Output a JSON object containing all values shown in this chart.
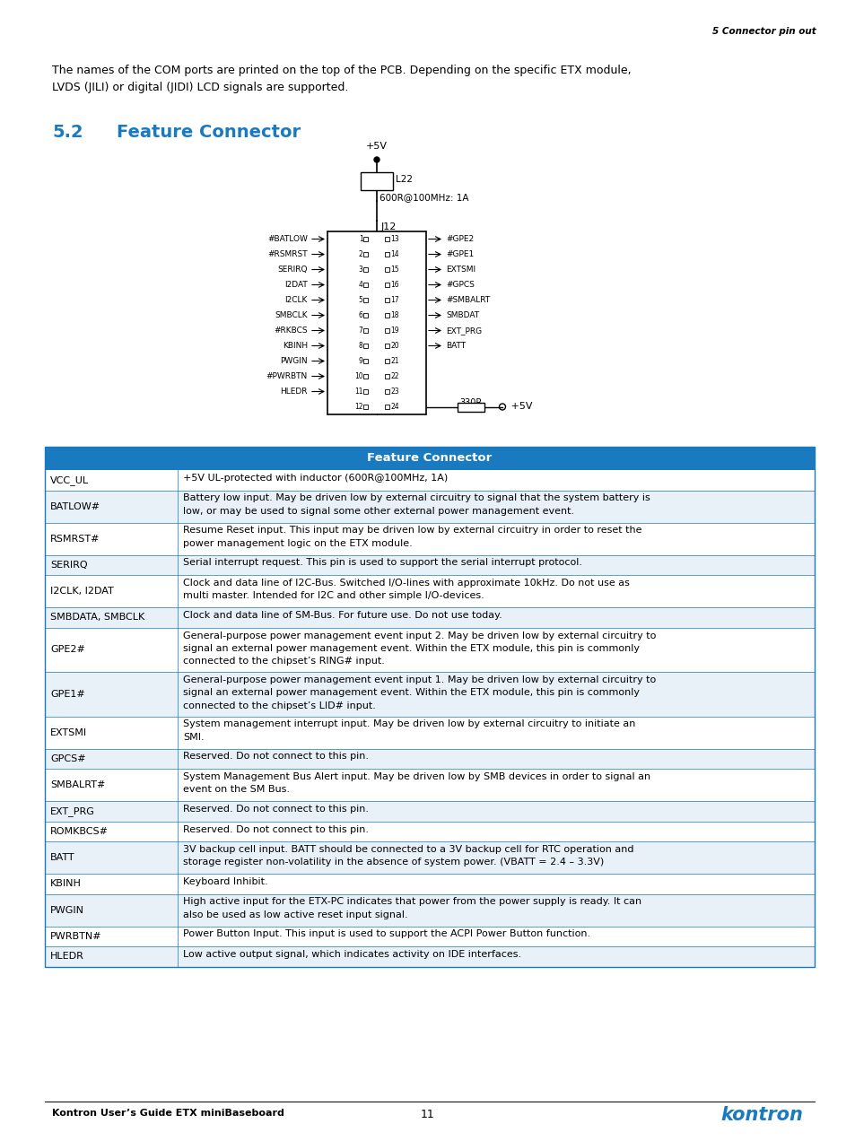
{
  "header_text": "5 Connector pin out",
  "intro_text": "The names of the COM ports are printed on the top of the PCB. Depending on the specific ETX module,\nLVDS (JILI) or digital (JIDI) LCD signals are supported.",
  "section_number": "5.2",
  "section_title": "Feature Connector",
  "table_header": "Feature Connector",
  "table_header_bg": "#1a7abf",
  "table_header_fg": "#ffffff",
  "table_row_bg_white": "#ffffff",
  "table_row_bg_blue": "#e8f0f8",
  "table_border_color": "#1a7abf",
  "footer_left": "Kontron User’s Guide ETX miniBaseboard",
  "footer_center": "11",
  "left_signals": [
    "#BATLOW",
    "#RSMRST",
    "SERIRQ",
    "I2DAT",
    "I2CLK",
    "SMBCLK",
    "#RKBCS",
    "KBINH",
    "PWGIN",
    "#PWRBTN",
    "HLEDR",
    ""
  ],
  "right_signals": [
    "#GPE2",
    "#GPE1",
    "EXTSMI",
    "#GPCS",
    "#SMBALRT",
    "SMBDAT",
    "EXT_PRG",
    "BATT",
    "",
    "",
    "",
    ""
  ],
  "table_rows": [
    [
      "VCC_UL",
      "+5V UL-protected with inductor (600R@100MHz, 1A)",
      1
    ],
    [
      "BATLOW#",
      "Battery low input. May be driven low by external circuitry to signal that the system battery is\nlow, or may be used to signal some other external power management event.",
      2
    ],
    [
      "RSMRST#",
      "Resume Reset input. This input may be driven low by external circuitry in order to reset the\npower management logic on the ETX module.",
      2
    ],
    [
      "SERIRQ",
      "Serial interrupt request. This pin is used to support the serial interrupt protocol.",
      1
    ],
    [
      "I2CLK, I2DAT",
      "Clock and data line of I2C-Bus. Switched I/O-lines with approximate 10kHz. Do not use as\nmulti master. Intended for I2C and other simple I/O-devices.",
      2
    ],
    [
      "SMBDATA, SMBCLK",
      "Clock and data line of SM-Bus. For future use. Do not use today.",
      1
    ],
    [
      "GPE2#",
      "General-purpose power management event input 2. May be driven low by external circuitry to\nsignal an external power management event. Within the ETX module, this pin is commonly\nconnected to the chipset’s RING# input.",
      3
    ],
    [
      "GPE1#",
      "General-purpose power management event input 1. May be driven low by external circuitry to\nsignal an external power management event. Within the ETX module, this pin is commonly\nconnected to the chipset’s LID# input.",
      3
    ],
    [
      "EXTSMI",
      "System management interrupt input. May be driven low by external circuitry to initiate an\nSMI.",
      2
    ],
    [
      "GPCS#",
      "Reserved. Do not connect to this pin.",
      1
    ],
    [
      "SMBALRT#",
      "System Management Bus Alert input. May be driven low by SMB devices in order to signal an\nevent on the SM Bus.",
      2
    ],
    [
      "EXT_PRG",
      "Reserved. Do not connect to this pin.",
      1
    ],
    [
      "ROMKBCS#",
      "Reserved. Do not connect to this pin.",
      1
    ],
    [
      "BATT",
      "3V backup cell input. BATT should be connected to a 3V backup cell for RTC operation and\nstorage register non-volatility in the absence of system power. (VBATT = 2.4 – 3.3V)",
      2
    ],
    [
      "KBINH",
      "Keyboard Inhibit.",
      1
    ],
    [
      "PWGIN",
      "High active input for the ETX-PC indicates that power from the power supply is ready. It can\nalso be used as low active reset input signal.",
      2
    ],
    [
      "PWRBTN#",
      "Power Button Input. This input is used to support the ACPI Power Button function.",
      1
    ],
    [
      "HLEDR",
      "Low active output signal, which indicates activity on IDE interfaces.",
      1
    ]
  ]
}
